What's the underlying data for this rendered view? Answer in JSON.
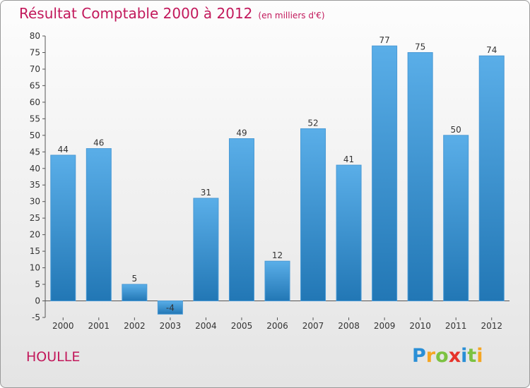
{
  "header": {
    "title": "Résultat Comptable 2000 à 2012",
    "subtitle": "(en milliers d'€)"
  },
  "footer": {
    "town": "HOULLE",
    "logo_letters": [
      {
        "ch": "P",
        "color": "#2a8fd6"
      },
      {
        "ch": "r",
        "color": "#f5a623"
      },
      {
        "ch": "o",
        "color": "#7cc242"
      },
      {
        "ch": "x",
        "color": "#e6332a"
      },
      {
        "ch": "i",
        "color": "#2a8fd6"
      },
      {
        "ch": "t",
        "color": "#7cc242"
      },
      {
        "ch": "i",
        "color": "#f5a623"
      }
    ]
  },
  "colors": {
    "bar_light": "#5aaee8",
    "bar_dark": "#2277b5",
    "title": "#c2185b"
  },
  "chart_data": {
    "type": "bar",
    "title": "Résultat Comptable 2000 à 2012",
    "subtitle": "(en milliers d'€)",
    "xlabel": "",
    "ylabel": "",
    "categories": [
      "2000",
      "2001",
      "2002",
      "2003",
      "2004",
      "2005",
      "2006",
      "2007",
      "2008",
      "2009",
      "2010",
      "2011",
      "2012"
    ],
    "values": [
      44,
      46,
      5,
      -4,
      31,
      49,
      12,
      52,
      41,
      77,
      75,
      50,
      74
    ],
    "ylim": [
      -5,
      80
    ],
    "yticks": [
      -5,
      0,
      5,
      10,
      15,
      20,
      25,
      30,
      35,
      40,
      45,
      50,
      55,
      60,
      65,
      70,
      75,
      80
    ],
    "grid": false
  }
}
